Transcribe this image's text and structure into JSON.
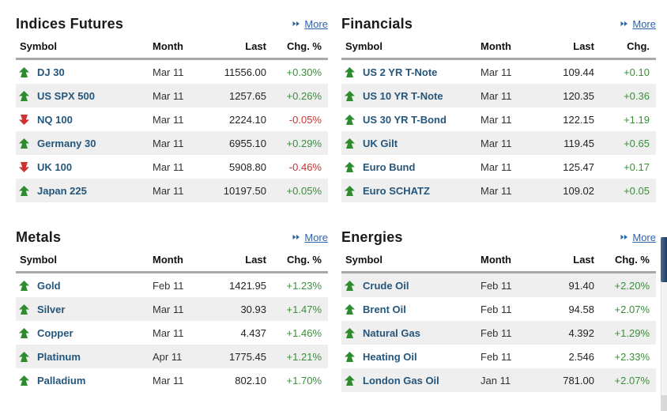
{
  "colors": {
    "link_blue": "#2b64a9",
    "symbol_navy": "#25567b",
    "up_green": "#2e8b2e",
    "text_green": "#3a8f3a",
    "down_red": "#cc3333",
    "alt_row_bg": "#efefef",
    "header_border": "#a8a8a8"
  },
  "sections": [
    {
      "title": "Indices Futures",
      "more_label": "More",
      "columns": [
        "Symbol",
        "Month",
        "Last",
        "Chg. %"
      ],
      "zebra_offset": 0,
      "rows": [
        {
          "direction": "up",
          "symbol": "DJ 30",
          "month": "Mar 11",
          "last": "11556.00",
          "chg": "+0.30%"
        },
        {
          "direction": "up",
          "symbol": "US SPX 500",
          "month": "Mar 11",
          "last": "1257.65",
          "chg": "+0.26%"
        },
        {
          "direction": "down",
          "symbol": "NQ 100",
          "month": "Mar 11",
          "last": "2224.10",
          "chg": "-0.05%"
        },
        {
          "direction": "up",
          "symbol": "Germany 30",
          "month": "Mar 11",
          "last": "6955.10",
          "chg": "+0.29%"
        },
        {
          "direction": "down",
          "symbol": "UK 100",
          "month": "Mar 11",
          "last": "5908.80",
          "chg": "-0.46%"
        },
        {
          "direction": "up",
          "symbol": "Japan 225",
          "month": "Mar 11",
          "last": "10197.50",
          "chg": "+0.05%"
        }
      ]
    },
    {
      "title": "Financials",
      "more_label": "More",
      "columns": [
        "Symbol",
        "Month",
        "Last",
        "Chg."
      ],
      "zebra_offset": 0,
      "rows": [
        {
          "direction": "up",
          "symbol": "US 2 YR T-Note",
          "month": "Mar 11",
          "last": "109.44",
          "chg": "+0.10"
        },
        {
          "direction": "up",
          "symbol": "US 10 YR T-Note",
          "month": "Mar 11",
          "last": "120.35",
          "chg": "+0.36"
        },
        {
          "direction": "up",
          "symbol": "US 30 YR T-Bond",
          "month": "Mar 11",
          "last": "122.15",
          "chg": "+1.19"
        },
        {
          "direction": "up",
          "symbol": "UK Gilt",
          "month": "Mar 11",
          "last": "119.45",
          "chg": "+0.65"
        },
        {
          "direction": "up",
          "symbol": "Euro Bund",
          "month": "Mar 11",
          "last": "125.47",
          "chg": "+0.17"
        },
        {
          "direction": "up",
          "symbol": "Euro SCHATZ",
          "month": "Mar 11",
          "last": "109.02",
          "chg": "+0.05"
        }
      ]
    },
    {
      "title": "Metals",
      "more_label": "More",
      "columns": [
        "Symbol",
        "Month",
        "Last",
        "Chg. %"
      ],
      "zebra_offset": 0,
      "rows": [
        {
          "direction": "up",
          "symbol": "Gold",
          "month": "Feb 11",
          "last": "1421.95",
          "chg": "+1.23%"
        },
        {
          "direction": "up",
          "symbol": "Silver",
          "month": "Mar 11",
          "last": "30.93",
          "chg": "+1.47%"
        },
        {
          "direction": "up",
          "symbol": "Copper",
          "month": "Mar 11",
          "last": "4.437",
          "chg": "+1.46%"
        },
        {
          "direction": "up",
          "symbol": "Platinum",
          "month": "Apr 11",
          "last": "1775.45",
          "chg": "+1.21%"
        },
        {
          "direction": "up",
          "symbol": "Palladium",
          "month": "Mar 11",
          "last": "802.10",
          "chg": "+1.70%"
        }
      ]
    },
    {
      "title": "Energies",
      "more_label": "More",
      "columns": [
        "Symbol",
        "Month",
        "Last",
        "Chg. %"
      ],
      "zebra_offset": 1,
      "rows": [
        {
          "direction": "up",
          "symbol": "Crude Oil",
          "month": "Feb 11",
          "last": "91.40",
          "chg": "+2.20%"
        },
        {
          "direction": "up",
          "symbol": "Brent Oil",
          "month": "Feb 11",
          "last": "94.58",
          "chg": "+2.07%"
        },
        {
          "direction": "up",
          "symbol": "Natural Gas",
          "month": "Feb 11",
          "last": "4.392",
          "chg": "+1.29%"
        },
        {
          "direction": "up",
          "symbol": "Heating Oil",
          "month": "Feb 11",
          "last": "2.546",
          "chg": "+2.33%"
        },
        {
          "direction": "up",
          "symbol": "London Gas Oil",
          "month": "Jan 11",
          "last": "781.00",
          "chg": "+2.07%"
        }
      ]
    }
  ]
}
